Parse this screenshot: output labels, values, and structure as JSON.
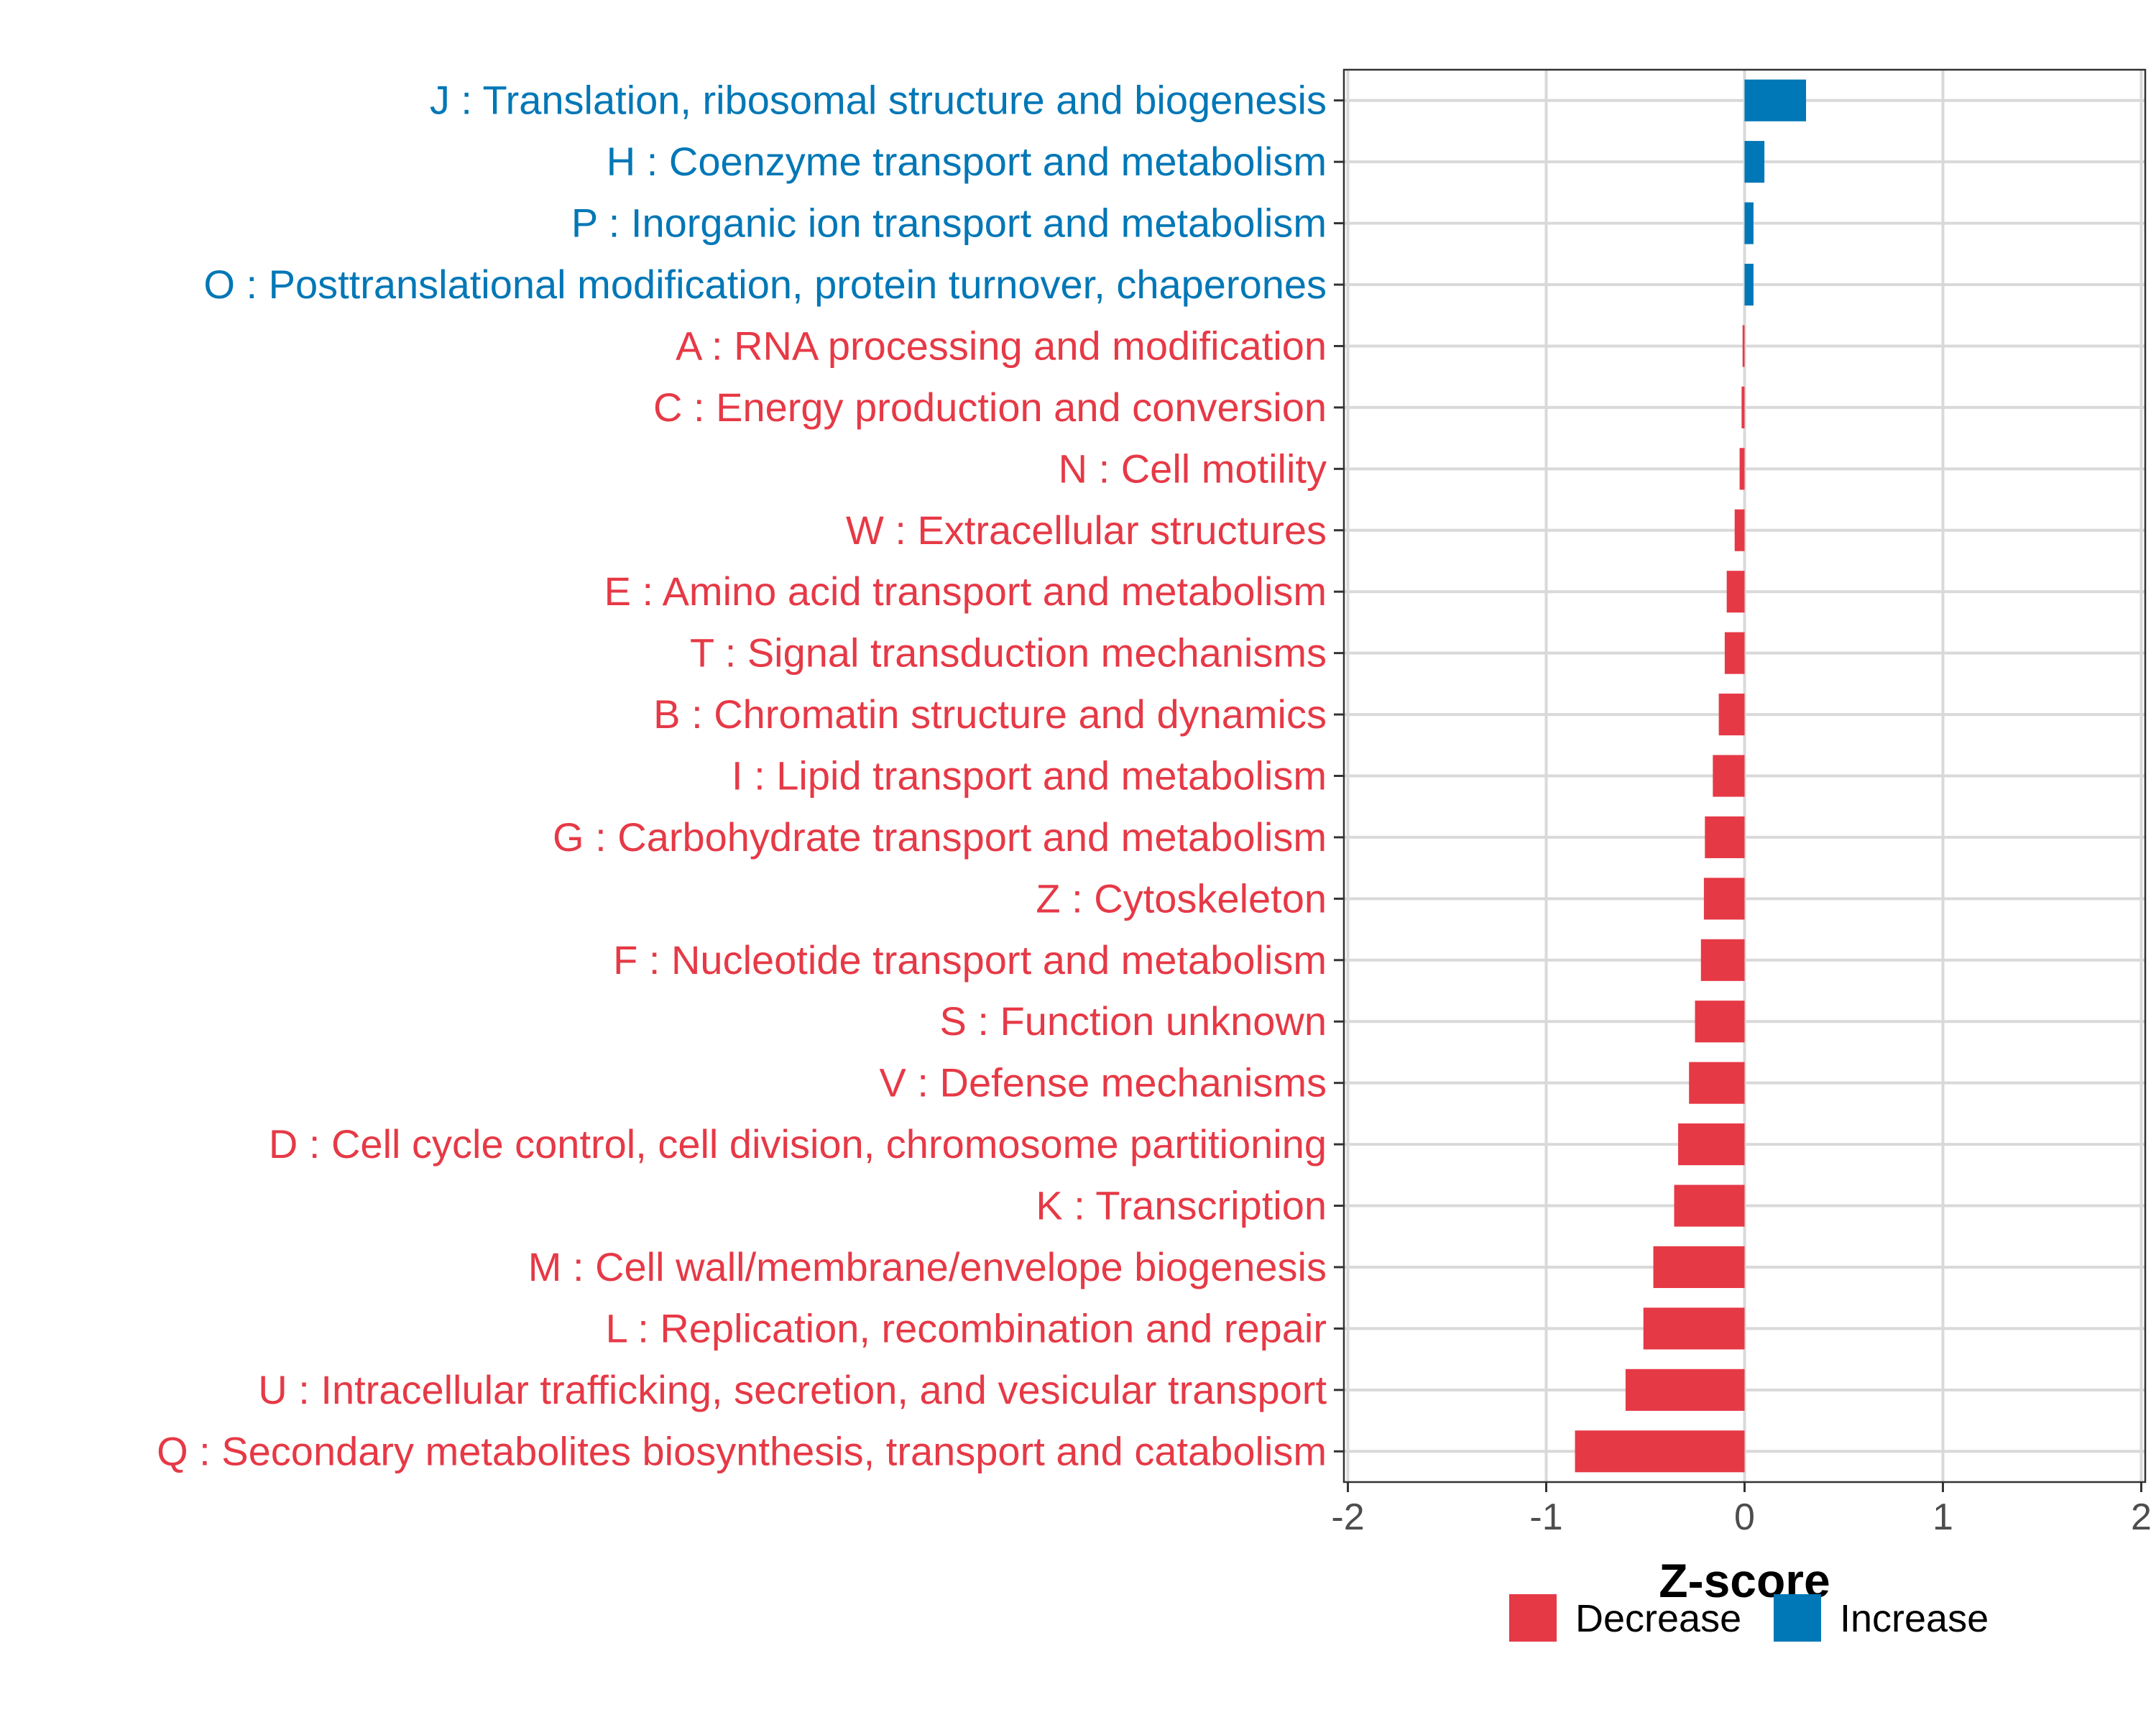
{
  "chart_data": {
    "type": "bar",
    "orientation": "horizontal",
    "xlabel": "Z-score",
    "ylabel": "",
    "xlim": [
      -2.02,
      2.02
    ],
    "xticks": [
      -2,
      -1,
      0,
      1,
      2
    ],
    "xtick_labels": [
      "-2",
      "-1",
      "0",
      "1",
      "2"
    ],
    "grid": true,
    "legend": {
      "placement": "bottom"
    },
    "groups": [
      {
        "name": "Decrease",
        "color": "#e63946"
      },
      {
        "name": "Increase",
        "color": "#0077b6"
      }
    ],
    "categories": [
      "J : Translation, ribosomal structure and biogenesis",
      "H : Coenzyme transport and metabolism",
      "P : Inorganic ion transport and metabolism",
      "O : Posttranslational modification, protein turnover, chaperones",
      "A : RNA processing and modification",
      "C : Energy production and conversion",
      "N : Cell motility",
      "W : Extracellular structures",
      "E : Amino acid transport and metabolism",
      "T : Signal transduction mechanisms",
      "B : Chromatin structure and dynamics",
      "I : Lipid transport and metabolism",
      "G : Carbohydrate transport and metabolism",
      "Z : Cytoskeleton",
      "F : Nucleotide transport and metabolism",
      "S : Function unknown",
      "V : Defense mechanisms",
      "D : Cell cycle control, cell division, chromosome partitioning",
      "K : Transcription",
      "M : Cell wall/membrane/envelope biogenesis",
      "L : Replication, recombination and repair",
      "U : Intracellular trafficking, secretion, and vesicular transport",
      "Q : Secondary metabolites biosynthesis, transport and catabolism"
    ],
    "values": [
      0.31,
      0.1,
      0.045,
      0.045,
      -0.01,
      -0.015,
      -0.025,
      -0.05,
      -0.09,
      -0.1,
      -0.13,
      -0.16,
      -0.2,
      -0.205,
      -0.22,
      -0.25,
      -0.28,
      -0.335,
      -0.355,
      -0.46,
      -0.51,
      -0.6,
      -0.855
    ],
    "group_of": [
      "Increase",
      "Increase",
      "Increase",
      "Increase",
      "Decrease",
      "Decrease",
      "Decrease",
      "Decrease",
      "Decrease",
      "Decrease",
      "Decrease",
      "Decrease",
      "Decrease",
      "Decrease",
      "Decrease",
      "Decrease",
      "Decrease",
      "Decrease",
      "Decrease",
      "Decrease",
      "Decrease",
      "Decrease",
      "Decrease"
    ]
  }
}
